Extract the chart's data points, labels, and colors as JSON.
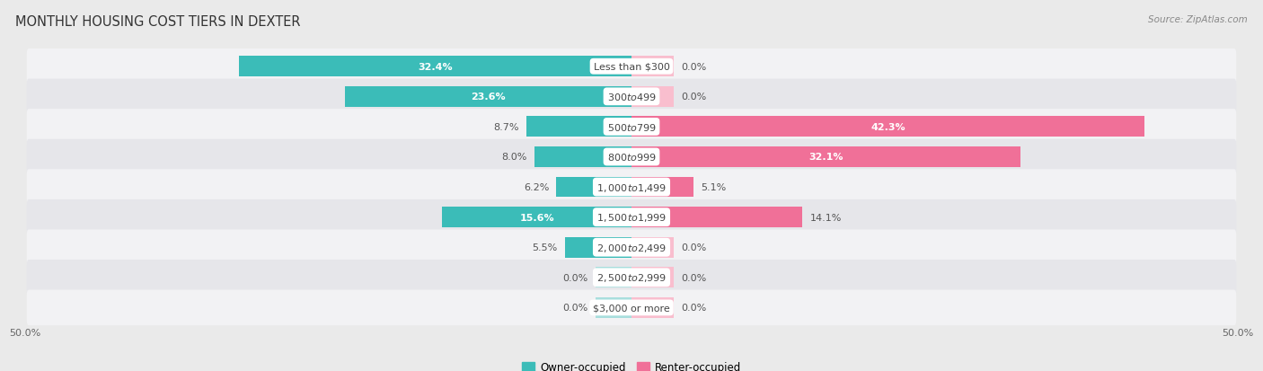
{
  "title": "MONTHLY HOUSING COST TIERS IN DEXTER",
  "source": "Source: ZipAtlas.com",
  "categories": [
    "Less than $300",
    "$300 to $499",
    "$500 to $799",
    "$800 to $999",
    "$1,000 to $1,499",
    "$1,500 to $1,999",
    "$2,000 to $2,499",
    "$2,500 to $2,999",
    "$3,000 or more"
  ],
  "owner_values": [
    32.4,
    23.6,
    8.7,
    8.0,
    6.2,
    15.6,
    5.5,
    0.0,
    0.0
  ],
  "renter_values": [
    0.0,
    0.0,
    42.3,
    32.1,
    5.1,
    14.1,
    0.0,
    0.0,
    0.0
  ],
  "owner_color": "#3BBCB8",
  "renter_color": "#F07098",
  "owner_color_light": "#A8DEDD",
  "renter_color_light": "#F9BECE",
  "bg_color": "#eaeaea",
  "row_bg_even": "#f2f2f4",
  "row_bg_odd": "#e6e6ea",
  "label_color_inside": "#ffffff",
  "label_color_outside": "#555555",
  "cat_label_color": "#444444",
  "x_min": -50.0,
  "x_max": 50.0,
  "ghost_owner": 3.0,
  "ghost_renter": 3.5,
  "title_fontsize": 10.5,
  "label_fontsize": 8.0,
  "cat_fontsize": 8.0,
  "tick_fontsize": 8.0,
  "source_fontsize": 7.5,
  "bar_height": 0.68
}
